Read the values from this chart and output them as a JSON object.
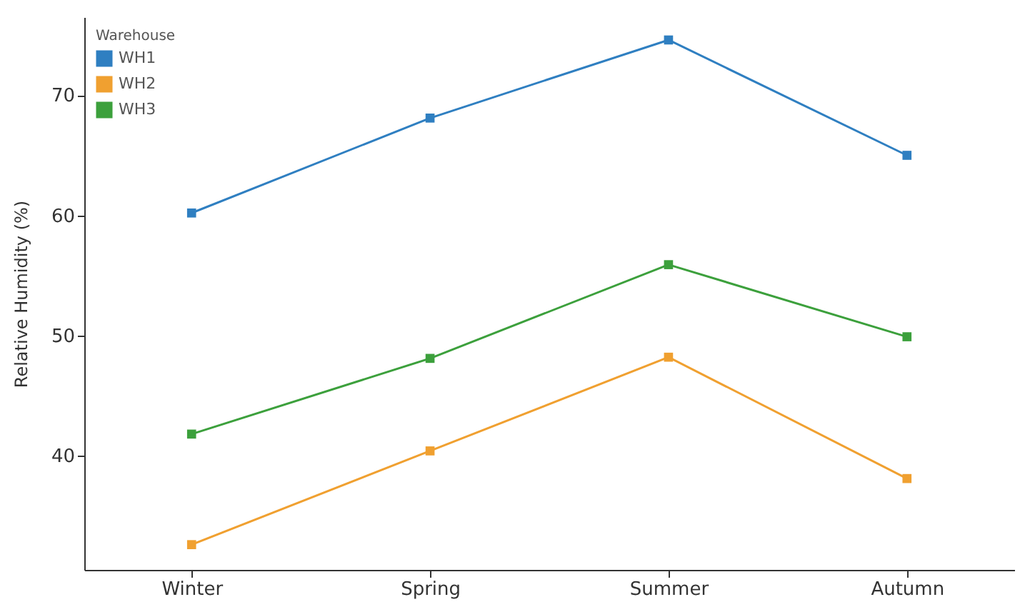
{
  "chart_data": {
    "type": "line",
    "ylabel": "Relative Humidity (%)",
    "legend_title": "Warehouse",
    "categories": [
      "Winter",
      "Spring",
      "Summer",
      "Autumn"
    ],
    "series": [
      {
        "name": "WH1",
        "color": "#2f7fc1",
        "values": [
          60.2,
          68.1,
          74.6,
          65.0
        ]
      },
      {
        "name": "WH2",
        "color": "#f0a030",
        "values": [
          32.6,
          40.4,
          48.2,
          38.1
        ]
      },
      {
        "name": "WH3",
        "color": "#3ca03c",
        "values": [
          41.8,
          48.1,
          55.9,
          49.9
        ]
      }
    ],
    "ylim": [
      30.5,
      76.5
    ],
    "yticks": [
      40,
      50,
      60,
      70
    ],
    "grid": false,
    "legend": "top left",
    "marker": "square",
    "line_style": "solid"
  }
}
